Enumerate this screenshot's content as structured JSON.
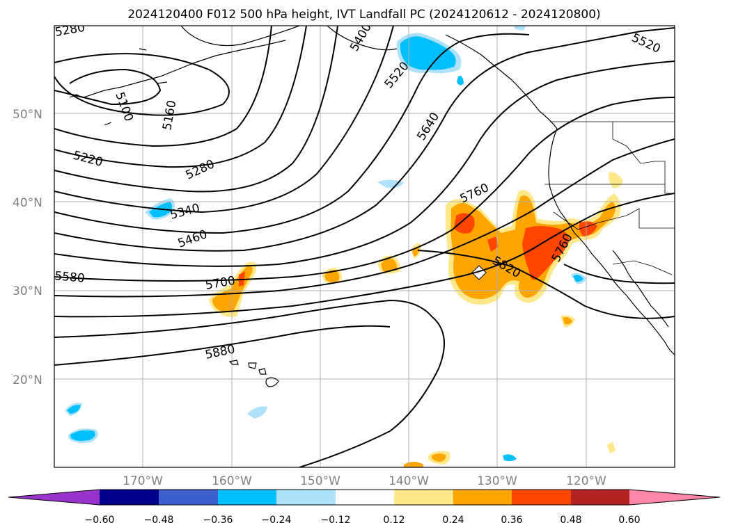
{
  "title": "2024120400 F012 500 hPa height, IVT Landfall PC (2024120612 - 2024120800)",
  "lat_labels": [
    "50°N",
    "40°N",
    "30°N",
    "20°N"
  ],
  "lon_labels": [
    "170°W",
    "160°W",
    "150°W",
    "140°W",
    "130°W",
    "120°W"
  ],
  "colorbar": {
    "ticks": [
      "−0.60",
      "−0.48",
      "−0.36",
      "−0.24",
      "−0.12",
      "0.12",
      "0.24",
      "0.36",
      "0.48",
      "0.60"
    ],
    "colors": [
      "#9933cc",
      "#00008b",
      "#3b5fcc",
      "#00bfff",
      "#aee2fb",
      "#ffffff",
      "#ffe88a",
      "#ffa500",
      "#ff4500",
      "#b22222",
      "#ff88aa"
    ]
  },
  "contour_labels": [
    "5280",
    "5100",
    "5160",
    "5220",
    "5280",
    "5340",
    "5460",
    "5580",
    "5700",
    "5880",
    "5400",
    "5520",
    "5640",
    "5760",
    "5820",
    "5760",
    "5520"
  ],
  "colors": {
    "negative": "#00bfff",
    "negative_light": "#aee2fb",
    "positive_light": "#ffe88a",
    "positive": "#ffa500",
    "positive_strong": "#ff4500"
  }
}
